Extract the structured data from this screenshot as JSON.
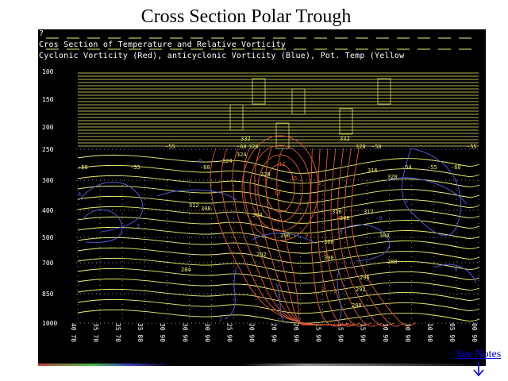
{
  "title": "Cross Section Polar Trough",
  "panel": {
    "prompt": "?",
    "header_line1": "Cros Section of Temperature and Relative Vorticity",
    "header_line2": "Cyclonic Vorticity (Red), anticyclonic Vorticity (Blue), Pot. Temp (Yellow",
    "pressure_levels": [
      "100",
      "150",
      "200",
      "250",
      "300",
      "400",
      "500",
      "700",
      "850",
      "1000"
    ],
    "bottom_labels": [
      "40 70",
      "35 70",
      "35 70",
      "35 80",
      "30 90",
      "30 90",
      "30 90",
      "25 90",
      "20 90",
      "20 90",
      "20 90",
      "15 90",
      "15 90",
      "15 90",
      "10 90",
      "10 90",
      "10 90",
      "05 90",
      "00 90"
    ],
    "temperature_labels": [
      {
        "text": "-50"
      },
      {
        "text": "-55"
      },
      {
        "text": "-60"
      },
      {
        "text": "-54"
      },
      {
        "text": "-55"
      },
      {
        "text": "-60"
      },
      {
        "text": "-50"
      },
      {
        "text": "-55"
      },
      {
        "text": "-60"
      },
      {
        "text": "-50"
      },
      {
        "text": "-55"
      }
    ],
    "theta_labels": [
      {
        "text": "332"
      },
      {
        "text": "328"
      },
      {
        "text": "324"
      },
      {
        "text": "320"
      },
      {
        "text": "316"
      },
      {
        "text": "312"
      },
      {
        "text": "308"
      },
      {
        "text": "304"
      },
      {
        "text": "300"
      },
      {
        "text": "296"
      },
      {
        "text": "292"
      },
      {
        "text": "288"
      },
      {
        "text": "284"
      },
      {
        "text": "332"
      },
      {
        "text": "328"
      },
      {
        "text": "324"
      },
      {
        "text": "320"
      },
      {
        "text": "316"
      },
      {
        "text": "312"
      },
      {
        "text": "308"
      },
      {
        "text": "304"
      },
      {
        "text": "300"
      },
      {
        "text": "296"
      },
      {
        "text": "292"
      },
      {
        "text": "288"
      }
    ],
    "red_labels": [
      {
        "text": "13"
      },
      {
        "text": "3"
      },
      {
        "text": "6"
      },
      {
        "text": "9"
      },
      {
        "text": "12"
      },
      {
        "text": "15"
      },
      {
        "text": "6"
      },
      {
        "text": "3"
      },
      {
        "text": "-3"
      }
    ],
    "blue_labels": [
      {
        "text": "4"
      },
      {
        "text": "3"
      },
      {
        "text": "-6"
      },
      {
        "text": "3"
      },
      {
        "text": "-3"
      },
      {
        "text": "-9"
      },
      {
        "text": "3"
      },
      {
        "text": "-6"
      },
      {
        "text": "3"
      }
    ]
  },
  "colors": {
    "panel_background": "#000000",
    "isentrope": "#f0f070",
    "cyclonic": "#e05a30",
    "anticyclonic": "#4a5ad8",
    "axis_text": "#ffffff",
    "link": "#0000ee"
  },
  "see_notes": {
    "label": "See Notes",
    "icon": "arrow-down-icon"
  }
}
